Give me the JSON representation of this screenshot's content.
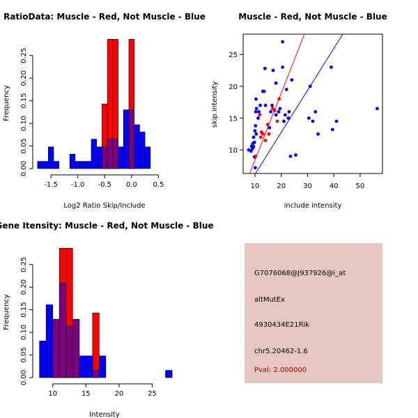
{
  "colors": {
    "red": "#ff0000",
    "blue": "#0000ff",
    "overlap": "#7f007f",
    "info_bg": "#e6c8c0",
    "pval": "#b00000"
  },
  "chart_data": [
    {
      "id": "ratio",
      "type": "bar",
      "title": "RatioData: Muscle - Red, Not Muscle - Blue",
      "xlabel": "Log2 Ratio Skip/Include",
      "ylabel": "Frequency",
      "xlim": [
        -1.8,
        0.78
      ],
      "ylim": [
        0,
        0.285
      ],
      "bin_start": -1.75,
      "bin_width": 0.1,
      "xticks": [
        -1.5,
        -1.0,
        -0.5,
        0.0,
        0.5
      ],
      "xtick_labels": [
        "-1.5",
        "-1.0",
        "-0.5",
        "0.0",
        "0.5"
      ],
      "yticks": [
        0,
        0.05,
        0.1,
        0.15,
        0.2,
        0.25
      ],
      "ytick_labels": [
        "0.00",
        "0.05",
        "0.10",
        "0.15",
        "0.20",
        "0.25"
      ],
      "series": [
        {
          "name": "Not Muscle",
          "color": "blue",
          "values": [
            0.016,
            0.016,
            0.048,
            0.016,
            0,
            0,
            0.032,
            0.016,
            0.016,
            0.016,
            0.065,
            0.048,
            0.048,
            0.065,
            0.065,
            0.048,
            0.13,
            0.13,
            0.097,
            0.081,
            0.048
          ]
        },
        {
          "name": "Muscle",
          "color": "red",
          "values": [
            0,
            0,
            0,
            0,
            0,
            0,
            0,
            0,
            0,
            0,
            0,
            0,
            0.143,
            0.286,
            0.286,
            0,
            0,
            0.286,
            0,
            0,
            0
          ]
        }
      ]
    },
    {
      "id": "scatter",
      "type": "scatter",
      "title": "Muscle - Red, Not Muscle - Blue",
      "xlabel": "include intensity",
      "ylabel": "skip intensity",
      "xlim": [
        5.5,
        58.5
      ],
      "ylim": [
        6.3,
        28.2
      ],
      "xticks": [
        10,
        20,
        30,
        40,
        50
      ],
      "xtick_labels": [
        "10",
        "20",
        "30",
        "40",
        "50"
      ],
      "yticks": [
        10,
        15,
        20,
        25
      ],
      "ytick_labels": [
        "10",
        "15",
        "20",
        "25"
      ],
      "series": [
        {
          "name": "Not Muscle",
          "color": "blue",
          "points": [
            [
              7.6,
              10
            ],
            [
              8.5,
              9.8
            ],
            [
              8.7,
              10.6
            ],
            [
              9,
              10.2
            ],
            [
              9.2,
              11
            ],
            [
              9.5,
              10.5
            ],
            [
              9.8,
              11.2
            ],
            [
              9.5,
              12
            ],
            [
              10,
              13
            ],
            [
              10.2,
              13.8
            ],
            [
              10.5,
              12.5
            ],
            [
              10.3,
              16
            ],
            [
              10.6,
              16.5
            ],
            [
              10.4,
              18
            ],
            [
              9.8,
              8.9
            ],
            [
              10.1,
              7.2
            ],
            [
              11.5,
              16
            ],
            [
              12,
              17
            ],
            [
              13,
              19.2
            ],
            [
              13.5,
              19.2
            ],
            [
              14,
              17
            ],
            [
              13.8,
              22.8
            ],
            [
              16,
              16
            ],
            [
              16.5,
              17
            ],
            [
              16.9,
              22.5
            ],
            [
              18,
              20.5
            ],
            [
              19,
              16
            ],
            [
              19.5,
              16.5
            ],
            [
              20.5,
              27
            ],
            [
              20.5,
              23
            ],
            [
              21,
              14.5
            ],
            [
              22,
              19.5
            ],
            [
              21.5,
              15.5
            ],
            [
              23,
              16
            ],
            [
              24,
              21
            ],
            [
              23.5,
              9
            ],
            [
              25.5,
              9.2
            ],
            [
              22.7,
              15
            ],
            [
              30.5,
              15
            ],
            [
              31,
              20
            ],
            [
              32,
              14.5
            ],
            [
              33,
              16
            ],
            [
              34,
              12.5
            ],
            [
              39,
              23
            ],
            [
              39.5,
              13.2
            ],
            [
              41,
              14.5
            ],
            [
              56.5,
              16.5
            ],
            [
              15.5,
              13.5
            ],
            [
              18,
              15.5
            ],
            [
              11.2,
              15
            ]
          ]
        },
        {
          "name": "Muscle",
          "color": "red",
          "points": [
            [
              10.2,
              9
            ],
            [
              11.8,
              15.5
            ],
            [
              12.2,
              12
            ],
            [
              12.5,
              12.8
            ],
            [
              13,
              12.5
            ],
            [
              14,
              11.5
            ],
            [
              14.8,
              14
            ],
            [
              15.3,
              12.5
            ],
            [
              16.7,
              16.5
            ],
            [
              17.5,
              16.2
            ],
            [
              18.5,
              14.5
            ],
            [
              19.2,
              18
            ]
          ]
        }
      ],
      "lines": [
        {
          "name": "Muscle fit",
          "color": "red",
          "from": [
            8,
            6.3
          ],
          "to": [
            28.8,
            28.2
          ]
        },
        {
          "name": "Not Muscle fit",
          "color": "blue",
          "from": [
            10.2,
            6.3
          ],
          "to": [
            43.4,
            28.2
          ]
        }
      ]
    },
    {
      "id": "intensity",
      "type": "bar",
      "title": "Gene Itensity: Muscle - Red, Not Muscle - Blue",
      "xlabel": "Intensity",
      "ylabel": "Frequency",
      "xlim": [
        7.3,
        28.2
      ],
      "ylim": [
        0,
        0.285
      ],
      "bin_start": 8,
      "bin_width": 1,
      "xticks": [
        10,
        15,
        20,
        25
      ],
      "xtick_labels": [
        "10",
        "15",
        "20",
        "25"
      ],
      "yticks": [
        0,
        0.05,
        0.1,
        0.15,
        0.2,
        0.25
      ],
      "ytick_labels": [
        "0.00",
        "0.05",
        "0.10",
        "0.15",
        "0.20",
        "0.25"
      ],
      "series": [
        {
          "name": "Not Muscle",
          "color": "blue",
          "values": [
            0.081,
            0.161,
            0.129,
            0.209,
            0.114,
            0.129,
            0.048,
            0.048,
            0.016,
            0.048,
            0,
            0,
            0,
            0,
            0,
            0,
            0,
            0,
            0,
            0.016
          ]
        },
        {
          "name": "Muscle",
          "color": "red",
          "values": [
            0,
            0,
            0.129,
            0.286,
            0.286,
            0.129,
            0,
            0,
            0.143,
            0,
            0,
            0,
            0,
            0,
            0,
            0,
            0,
            0,
            0,
            0
          ]
        }
      ]
    }
  ],
  "info": {
    "probe_id": "G7076068@J937926@i_at",
    "event_type": "altMutEx",
    "gene": "4930434E21Rik",
    "location": "chr5.20462-1.6",
    "pval": "Pval: 2.000000"
  }
}
